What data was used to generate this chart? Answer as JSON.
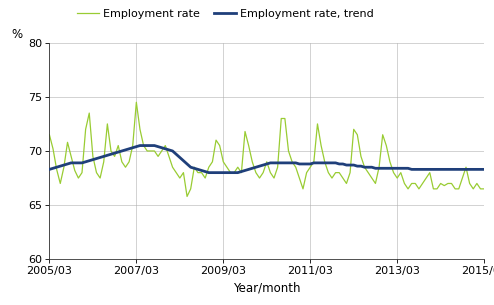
{
  "xlabel": "Year/month",
  "ylabel": "%",
  "ylim": [
    60,
    80
  ],
  "yticks": [
    60,
    65,
    70,
    75,
    80
  ],
  "xtick_labels": [
    "2005/03",
    "2007/03",
    "2009/03",
    "2011/03",
    "2013/03",
    "2015/03"
  ],
  "legend_labels": [
    "Employment rate",
    "Employment rate, trend"
  ],
  "line_color_employment": "#99cc33",
  "line_color_trend": "#1f3f7a",
  "employment_rate": [
    71.5,
    70.2,
    68.3,
    67.0,
    68.5,
    70.8,
    69.5,
    68.2,
    67.5,
    68.0,
    72.0,
    73.5,
    69.5,
    68.0,
    67.5,
    69.0,
    72.5,
    70.0,
    69.5,
    70.5,
    69.0,
    68.5,
    69.0,
    70.5,
    74.5,
    72.0,
    70.5,
    70.0,
    70.0,
    70.0,
    69.5,
    70.0,
    70.5,
    69.5,
    68.5,
    68.0,
    67.5,
    68.0,
    65.8,
    66.5,
    68.5,
    68.0,
    68.0,
    67.5,
    68.5,
    69.0,
    71.0,
    70.5,
    69.0,
    68.5,
    68.0,
    68.0,
    68.5,
    68.0,
    71.8,
    70.5,
    69.0,
    68.0,
    67.5,
    68.0,
    69.0,
    68.0,
    67.5,
    68.5,
    73.0,
    73.0,
    70.0,
    69.0,
    68.5,
    67.5,
    66.5,
    68.0,
    68.5,
    69.0,
    72.5,
    70.5,
    69.0,
    68.0,
    67.5,
    68.0,
    68.0,
    67.5,
    67.0,
    68.0,
    72.0,
    71.5,
    69.5,
    68.5,
    68.0,
    67.5,
    67.0,
    68.5,
    71.5,
    70.5,
    69.0,
    68.0,
    67.5,
    68.0,
    67.0,
    66.5,
    67.0,
    67.0,
    66.5,
    67.0,
    67.5,
    68.0,
    66.5,
    66.5,
    67.0,
    66.8,
    67.0,
    67.0,
    66.5,
    66.5,
    67.5,
    68.5,
    67.0,
    66.5,
    67.0,
    66.5,
    66.5
  ],
  "employment_trend": [
    68.3,
    68.4,
    68.5,
    68.6,
    68.7,
    68.8,
    68.9,
    68.9,
    68.9,
    68.9,
    69.0,
    69.1,
    69.2,
    69.3,
    69.4,
    69.5,
    69.6,
    69.7,
    69.8,
    69.9,
    70.0,
    70.1,
    70.2,
    70.3,
    70.4,
    70.5,
    70.5,
    70.5,
    70.5,
    70.5,
    70.4,
    70.3,
    70.2,
    70.1,
    70.0,
    69.7,
    69.4,
    69.1,
    68.8,
    68.5,
    68.4,
    68.3,
    68.2,
    68.1,
    68.0,
    68.0,
    68.0,
    68.0,
    68.0,
    68.0,
    68.0,
    68.0,
    68.0,
    68.1,
    68.2,
    68.3,
    68.4,
    68.5,
    68.6,
    68.7,
    68.8,
    68.9,
    68.9,
    68.9,
    68.9,
    68.9,
    68.9,
    68.9,
    68.9,
    68.8,
    68.8,
    68.8,
    68.8,
    68.9,
    68.9,
    68.9,
    68.9,
    68.9,
    68.9,
    68.9,
    68.8,
    68.8,
    68.7,
    68.7,
    68.7,
    68.6,
    68.6,
    68.5,
    68.5,
    68.5,
    68.4,
    68.4,
    68.4,
    68.4,
    68.4,
    68.4,
    68.4,
    68.4,
    68.4,
    68.4,
    68.3,
    68.3,
    68.3,
    68.3,
    68.3,
    68.3,
    68.3,
    68.3,
    68.3,
    68.3,
    68.3,
    68.3,
    68.3,
    68.3,
    68.3,
    68.3,
    68.3,
    68.3,
    68.3,
    68.3,
    68.3
  ]
}
